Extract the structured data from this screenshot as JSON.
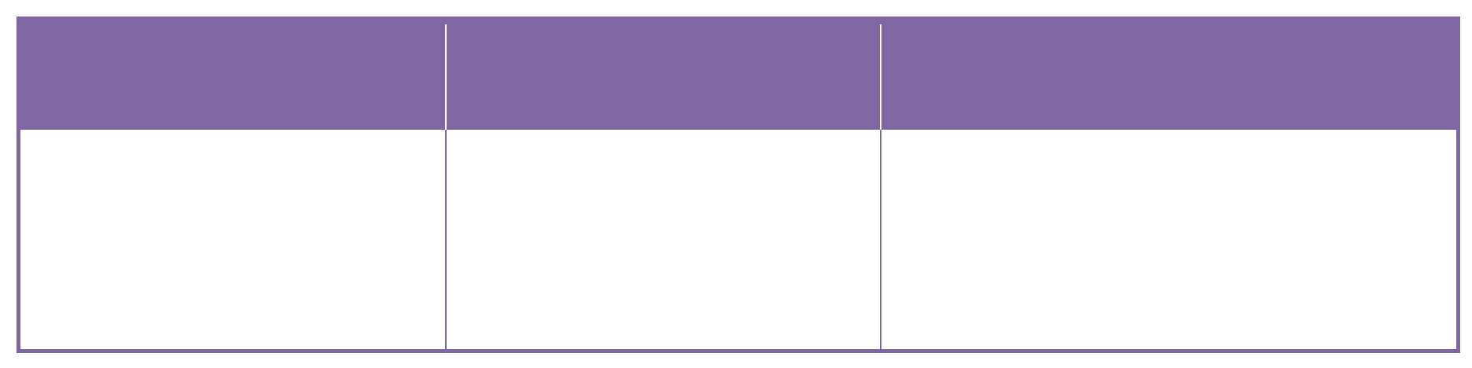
{
  "table": {
    "accent_color": "#8066a2",
    "header_cells": [
      "",
      "",
      ""
    ],
    "body_cells": [
      "",
      "",
      ""
    ]
  }
}
